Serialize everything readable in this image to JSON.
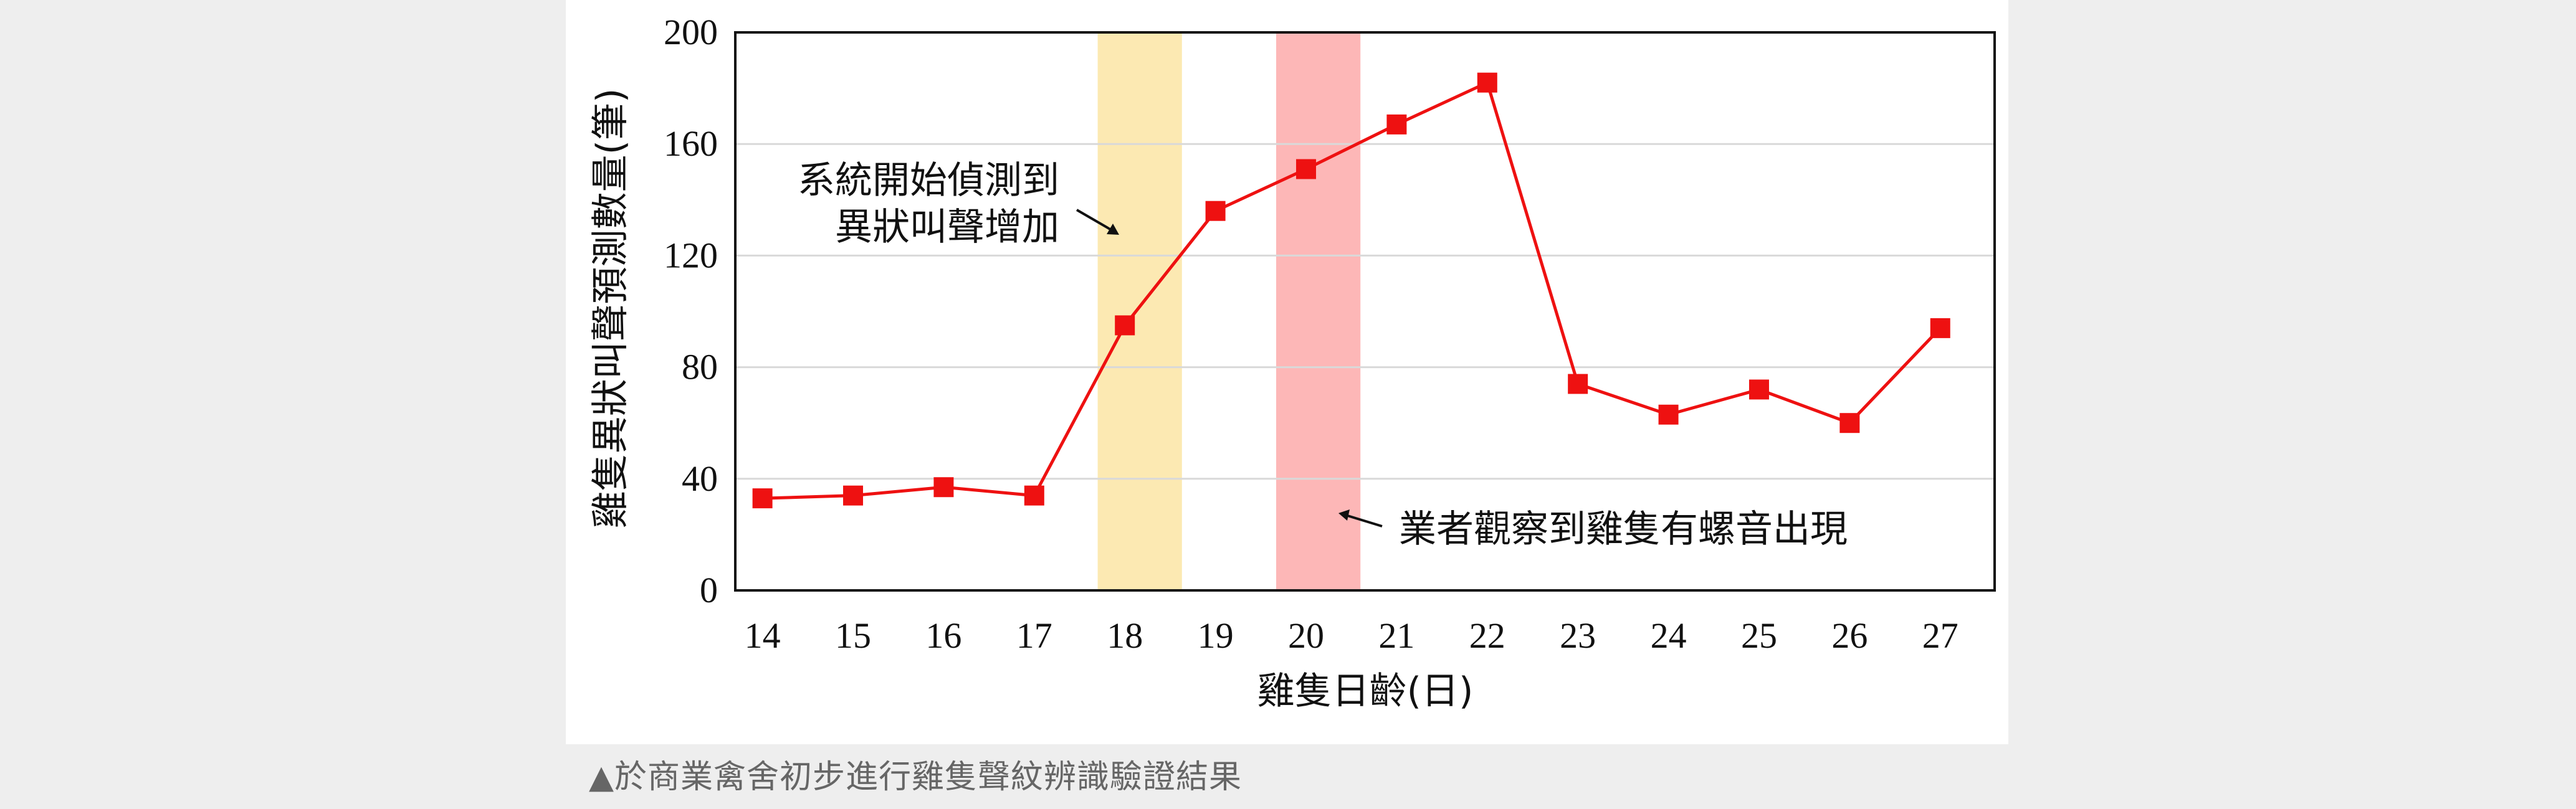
{
  "caption": "▲於商業禽舍初步進行雞隻聲紋辨識驗證結果",
  "colors": {
    "series": "#ee1111",
    "band_detect": "#fce9b2",
    "band_observe": "#fdb7b7",
    "grid": "#d9d9d9",
    "frame": "#111111"
  },
  "chart_data": {
    "type": "line",
    "title": "",
    "xlabel": "雞隻日齡(日)",
    "ylabel": "雞隻異狀叫聲預測數量(筆)",
    "x": [
      14,
      15,
      16,
      17,
      18,
      19,
      20,
      21,
      22,
      23,
      24,
      25,
      26,
      27
    ],
    "xlim": [
      13.7,
      27.6
    ],
    "ylim": [
      0,
      200
    ],
    "yticks": [
      0,
      40,
      80,
      120,
      160,
      200
    ],
    "grid": true,
    "series": [
      {
        "values": [
          33,
          34,
          37,
          34,
          95,
          136,
          151,
          167,
          182,
          74,
          63,
          72,
          60,
          94
        ],
        "marker": "square"
      }
    ],
    "highlight_bands": [
      {
        "x_from": 17.7,
        "x_to": 18.63,
        "color": "#fce9b2"
      },
      {
        "x_from": 19.67,
        "x_to": 20.6,
        "color": "#fdb7b7"
      }
    ],
    "annotations": [
      {
        "lines": [
          "系統開始偵測到",
          "異狀叫聲增加"
        ],
        "points_to_x": 18
      },
      {
        "lines": [
          "業者觀察到雞隻有螺音出現"
        ],
        "points_to_x": 20
      }
    ]
  }
}
